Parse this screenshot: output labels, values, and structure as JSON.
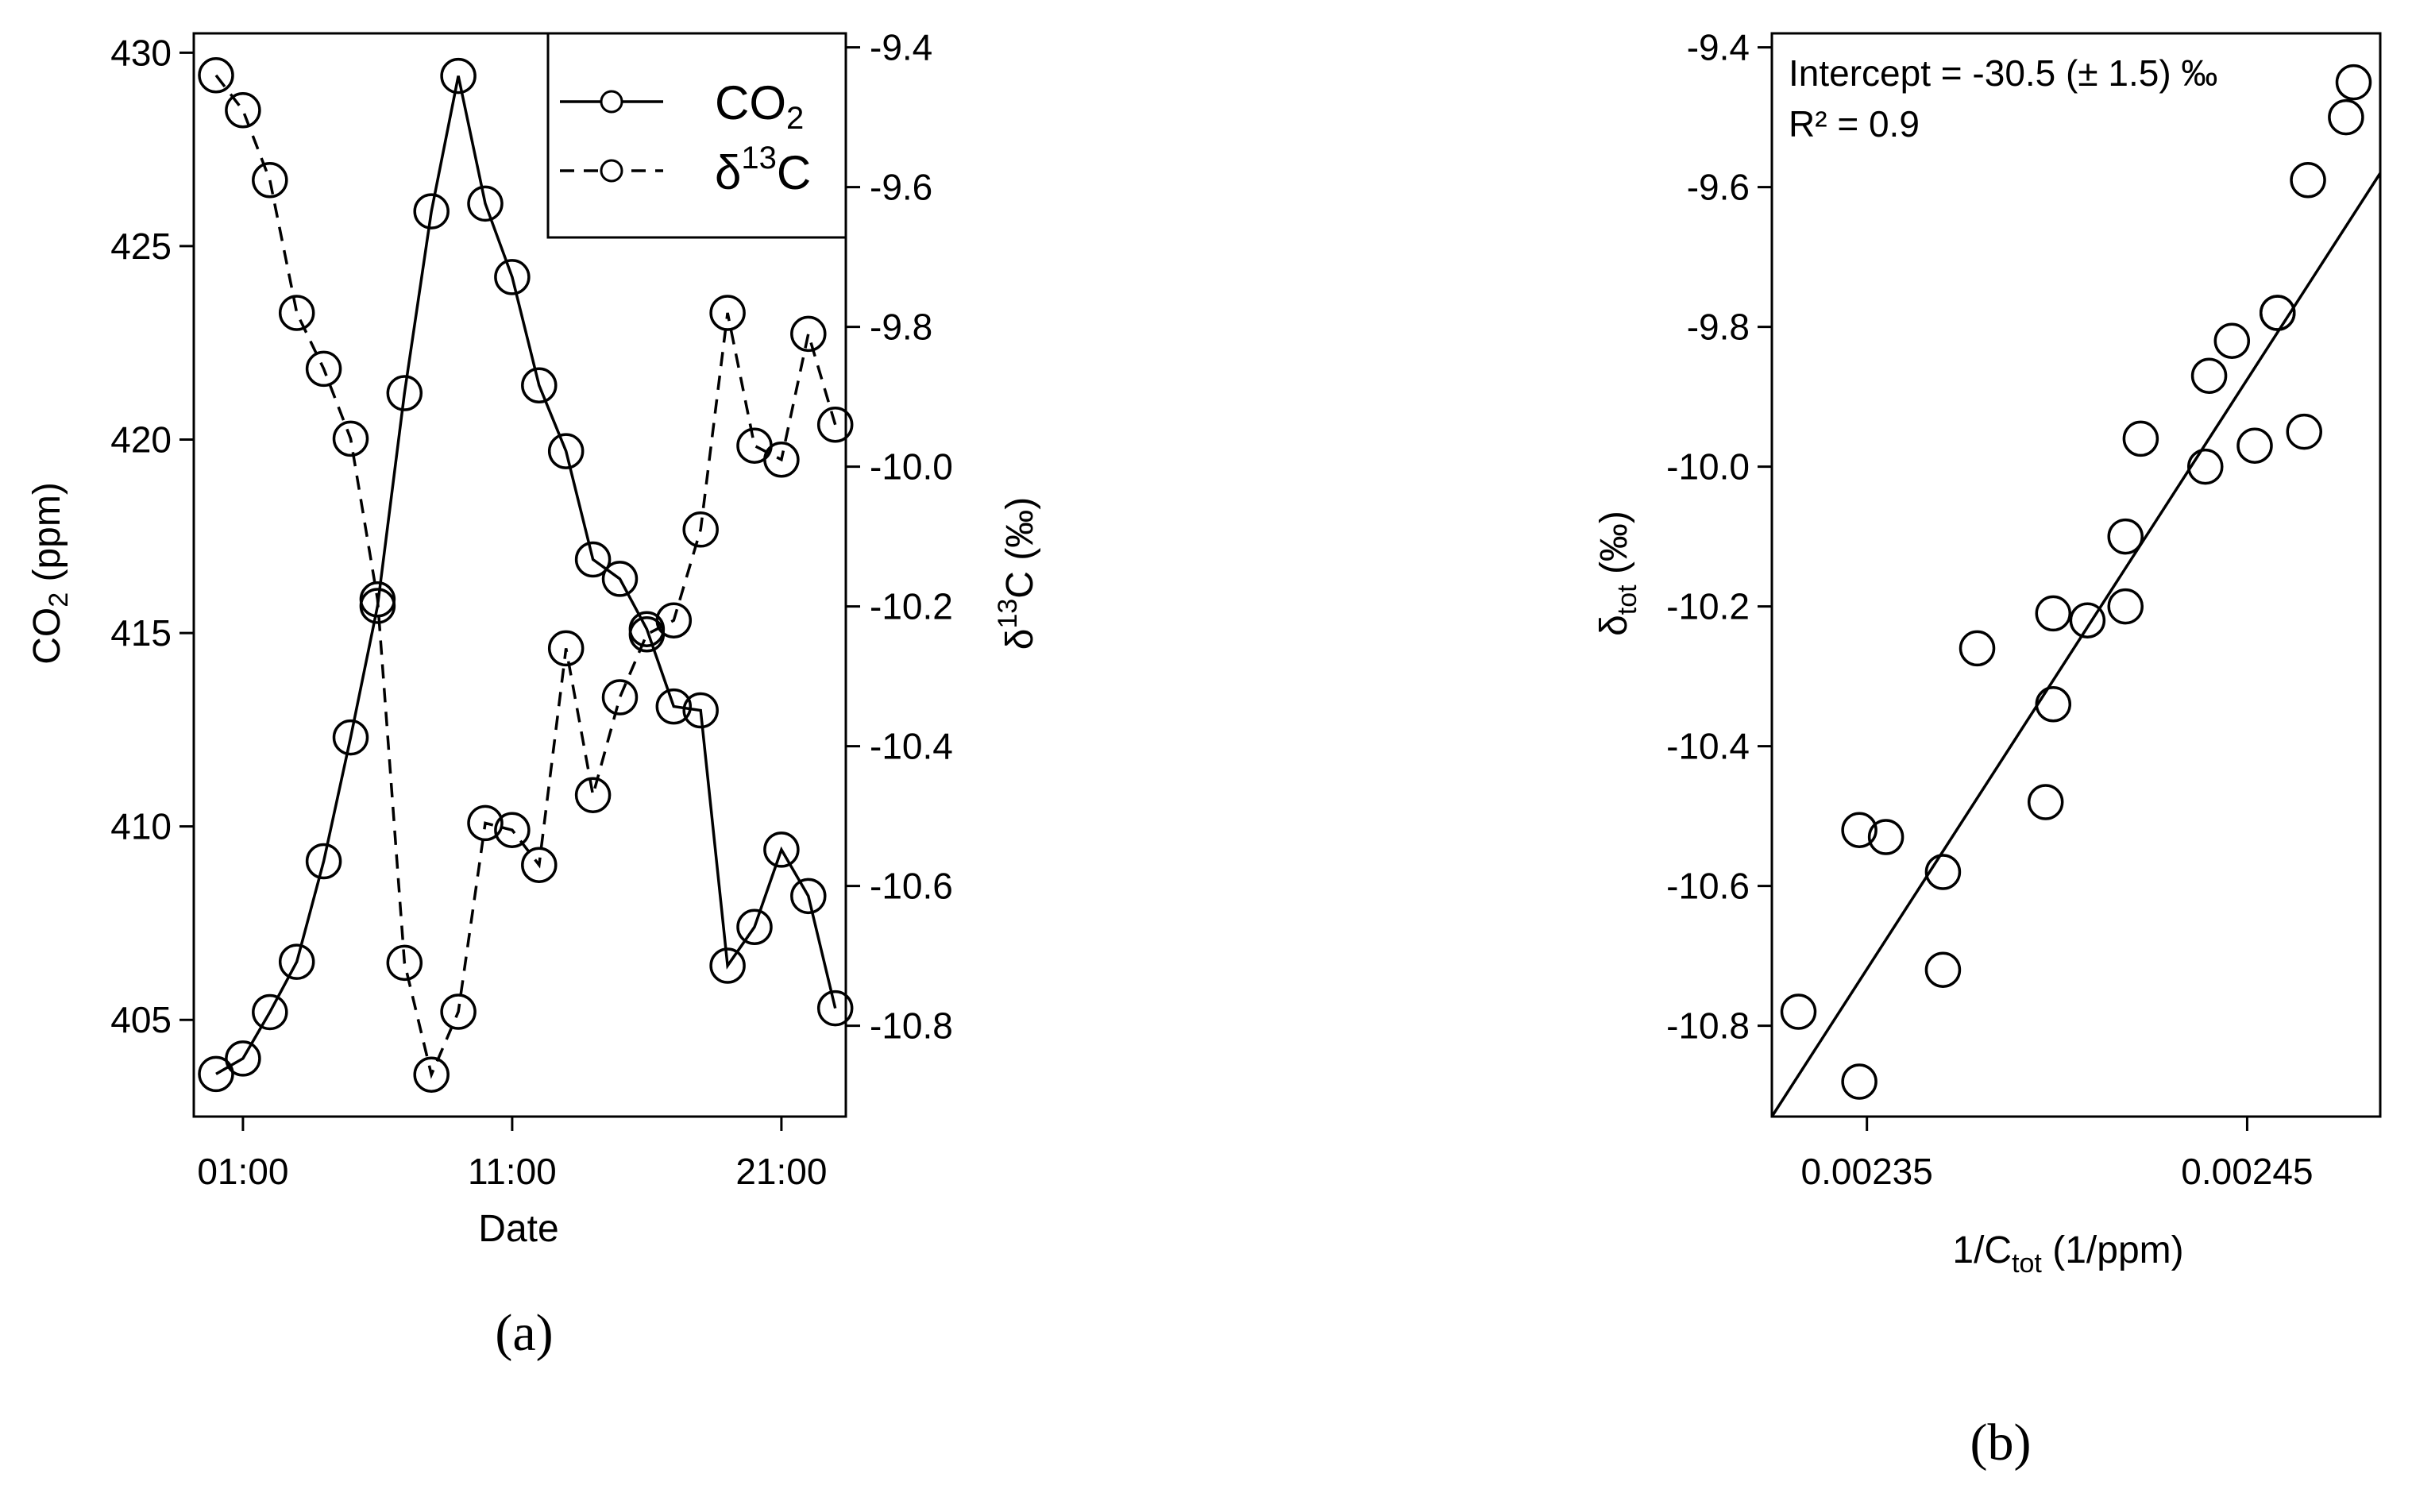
{
  "chart_data": [
    {
      "panel": "(a)",
      "type": "line",
      "xlabel": "Date",
      "ylabel_left": "CO2 (ppm)",
      "ylabel_right": "δ13C (‰)",
      "x_tick_labels": [
        "01:00",
        "11:00",
        "21:00"
      ],
      "ylim_left": [
        402.5,
        430.5
      ],
      "yticks_left": [
        405,
        410,
        415,
        420,
        425,
        430
      ],
      "ylim_right": [
        -10.93,
        -9.38
      ],
      "yticks_right": [
        -9.4,
        -9.6,
        -9.8,
        -10.0,
        -10.2,
        -10.4,
        -10.6,
        -10.8
      ],
      "yticks_right_labels": [
        "-9.4",
        "-9.6",
        "-9.8",
        "-10.0",
        "-10.2",
        "-10.4",
        "-10.6",
        "-10.8"
      ],
      "x_hours": [
        0,
        1,
        2,
        3,
        4,
        5,
        6,
        7,
        8,
        9,
        10,
        11,
        12,
        13,
        14,
        15,
        16,
        17,
        18,
        19,
        20,
        21,
        22,
        23
      ],
      "series": [
        {
          "name": "CO2",
          "axis": "left",
          "linestyle": "solid",
          "values": [
            403.6,
            404.0,
            405.2,
            406.5,
            409.1,
            412.3,
            415.7,
            421.2,
            425.9,
            429.4,
            426.1,
            424.2,
            421.4,
            419.7,
            416.9,
            416.4,
            415.1,
            413.1,
            413.0,
            406.4,
            407.4,
            409.4,
            408.2,
            405.3
          ]
        },
        {
          "name": "δ13C",
          "axis": "right",
          "linestyle": "dashed",
          "values": [
            -9.44,
            -9.49,
            -9.59,
            -9.78,
            -9.86,
            -9.96,
            -10.19,
            -10.71,
            -10.87,
            -10.78,
            -10.51,
            -10.52,
            -10.57,
            -10.26,
            -10.47,
            -10.33,
            -10.24,
            -10.22,
            -10.09,
            -9.78,
            -9.97,
            -9.99,
            -9.81,
            -9.94
          ]
        }
      ],
      "legend": {
        "position": "top-right",
        "entries": [
          "CO",
          "δ",
          "C"
        ]
      }
    },
    {
      "panel": "(b)",
      "type": "scatter",
      "xlabel": "1/Ctot (1/ppm)",
      "ylabel": "δtot (‰)",
      "xlim": [
        0.002325,
        0.002485
      ],
      "ylim": [
        -10.93,
        -9.38
      ],
      "x_tick_values": [
        0.00235,
        0.00245
      ],
      "x_tick_labels": [
        "0.00235",
        "0.00245"
      ],
      "yticks": [
        -9.4,
        -9.6,
        -9.8,
        -10.0,
        -10.2,
        -10.4,
        -10.6,
        -10.8
      ],
      "ytick_labels": [
        "-9.4",
        "-9.6",
        "-9.8",
        "-10.0",
        "-10.2",
        "-10.4",
        "-10.6",
        "-10.8"
      ],
      "annotations": [
        "Intercept = -30.5 (± 1.5) ‰",
        "R² = 0.9"
      ],
      "fit_line": {
        "x": [
          0.002325,
          0.002485
        ],
        "y": [
          -10.93,
          -9.58
        ]
      },
      "points": {
        "x": [
          0.002332,
          0.002348,
          0.002348,
          0.002355,
          0.00237,
          0.00237,
          0.002379,
          0.002397,
          0.002399,
          0.002399,
          0.002408,
          0.002418,
          0.002418,
          0.002422,
          0.002439,
          0.00244,
          0.002446,
          0.002452,
          0.002458,
          0.002458,
          0.002465,
          0.002466,
          0.002476,
          0.002478
        ],
        "y": [
          -10.78,
          -10.88,
          -10.52,
          -10.53,
          -10.58,
          -10.72,
          -10.26,
          -10.48,
          -10.34,
          -10.21,
          -10.22,
          -10.1,
          -10.2,
          -9.96,
          -10.0,
          -9.87,
          -9.82,
          -9.97,
          -9.78,
          -9.78,
          -9.95,
          -9.59,
          -9.5,
          -9.45
        ]
      }
    }
  ],
  "figure": {
    "panel_a_label": "(a)",
    "panel_b_label": "(b)",
    "legend_sub_2": "2",
    "legend_sup_13": "13",
    "ylabel_a_left_main": "CO",
    "ylabel_a_left_sub": "2",
    "ylabel_a_left_tail": " (ppm)",
    "ylabel_a_right_main": "δ",
    "ylabel_a_right_sup": "13",
    "ylabel_a_right_tail": "C (‰)",
    "ylabel_b_main": "δ",
    "ylabel_b_sub": "tot",
    "ylabel_b_tail": " (‰)",
    "xlabel_b_main": "1/C",
    "xlabel_b_sub": "tot",
    "xlabel_b_tail": " (1/ppm)"
  }
}
